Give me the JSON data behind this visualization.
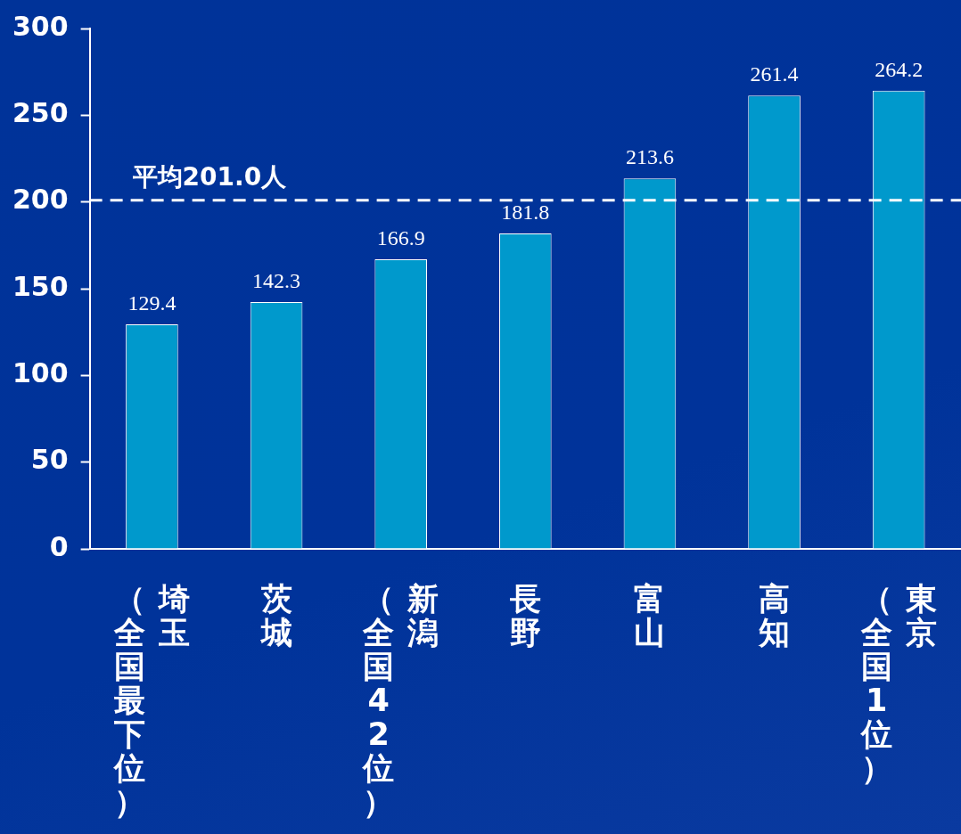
{
  "chart_data": {
    "type": "bar",
    "categories": [
      "埼玉（全国最下位）",
      "茨城",
      "新潟（全国42位）",
      "長野",
      "富山",
      "高知",
      "東京（全国1位）"
    ],
    "values": [
      129.4,
      142.3,
      166.9,
      181.8,
      213.6,
      261.4,
      264.2
    ],
    "color": "#0099cc",
    "ylim": [
      0,
      300
    ],
    "yticks": [
      0,
      50,
      100,
      150,
      200,
      250,
      300
    ],
    "grid": false,
    "legend": false,
    "data_labels": true,
    "ref_lines": [
      {
        "axis": "y",
        "value": 201.0,
        "label": "平均201.0人",
        "color": "#ffffff",
        "line_style": "dashed"
      }
    ]
  }
}
